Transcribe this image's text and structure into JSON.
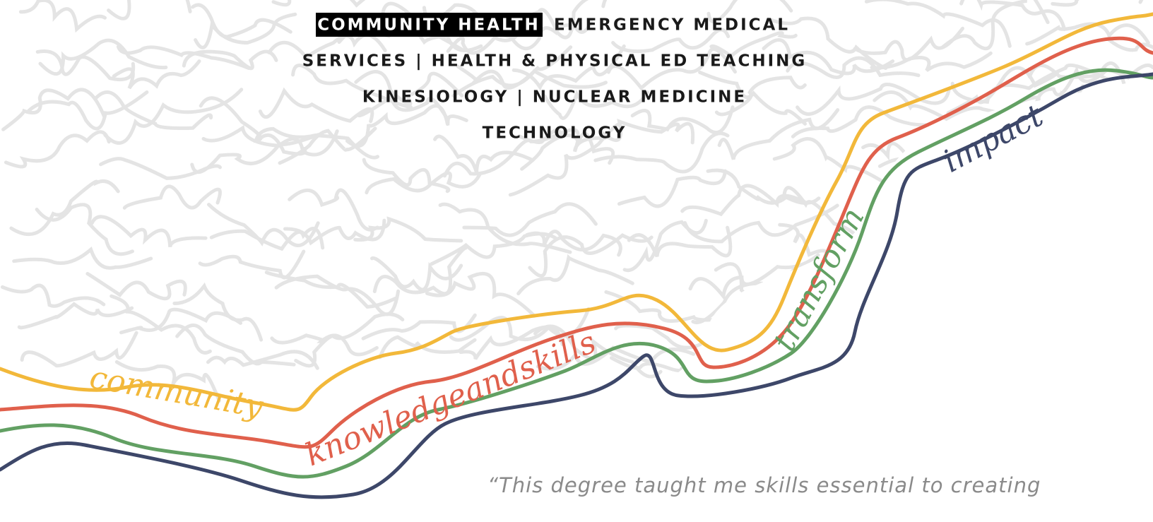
{
  "programs": [
    "COMMUNITY HEALTH",
    "EMERGENCY MEDICAL",
    "SERVICES | HEALTH & PHYSICAL ED TEACHING",
    "KINESIOLOGY | NUCLEAR MEDICINE",
    "TECHNOLOGY"
  ],
  "script_words": [
    "community",
    "knowledgeandskills",
    "transform",
    "impact"
  ],
  "quote": "“This degree taught me skills essential to creating"
}
